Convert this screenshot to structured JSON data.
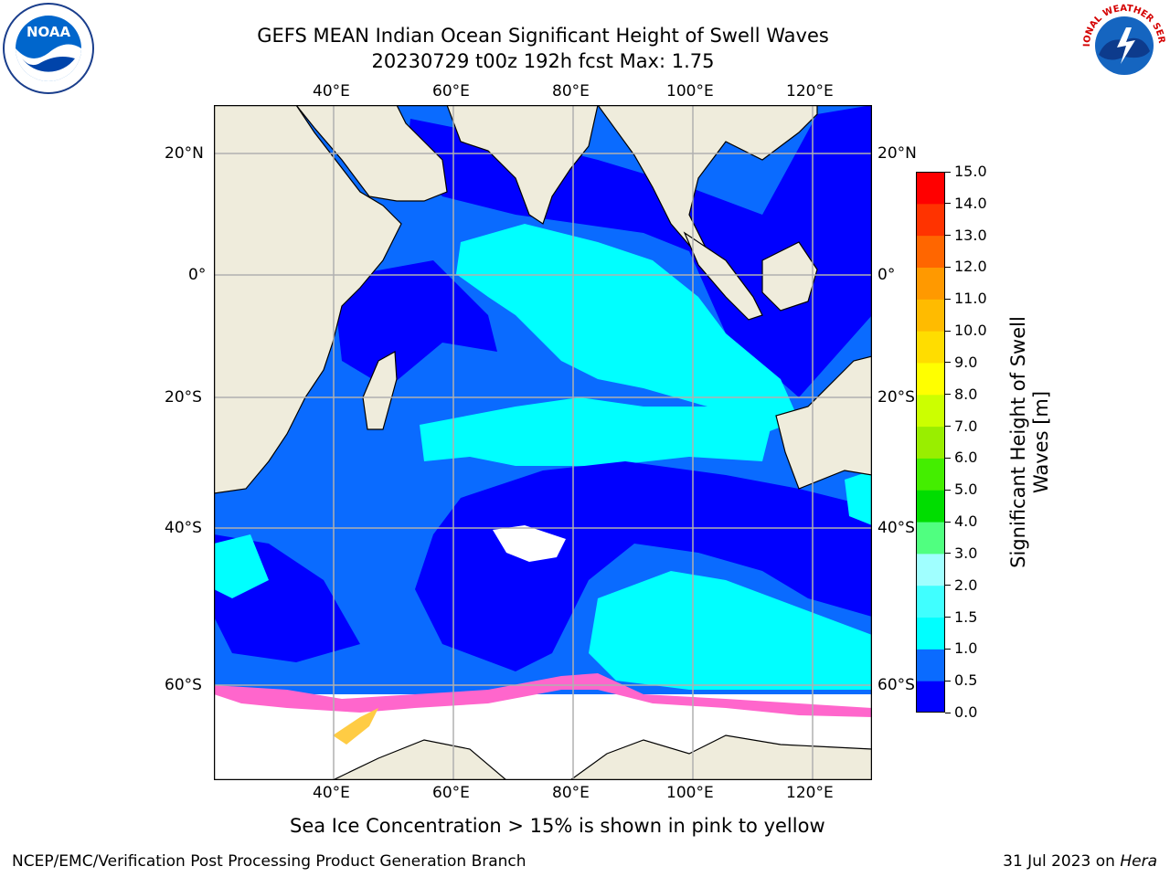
{
  "title": {
    "line1": "GEFS MEAN Indian Ocean Significant Height of Swell Waves",
    "line2": "20230729 t00z 192h fcst   Max: 1.75"
  },
  "map": {
    "lon_top": [
      "40°E",
      "60°E",
      "80°E",
      "100°E",
      "120°E"
    ],
    "lon_bottom": [
      "40°E",
      "60°E",
      "80°E",
      "100°E",
      "120°E"
    ],
    "lat_left": [
      "20°N",
      "0°",
      "20°S",
      "40°S",
      "60°S"
    ],
    "lat_right": [
      "20°N",
      "0°",
      "20°S",
      "40°S",
      "60°S"
    ],
    "colors": {
      "land": "#efecdc",
      "deep": "#0000ff",
      "mid": "#0a6bff",
      "cyan": "#00ffff",
      "grid": "#b0b0b0"
    }
  },
  "colorbar": {
    "label_line1": "Significant Height of Swell",
    "label_line2": "Waves [m]",
    "ticks": [
      "0.0",
      "0.5",
      "1.0",
      "1.5",
      "2.0",
      "3.0",
      "4.0",
      "5.0",
      "6.0",
      "7.0",
      "8.0",
      "9.0",
      "10.0",
      "11.0",
      "12.0",
      "13.0",
      "14.0",
      "15.0"
    ],
    "colors": [
      "#0000ff",
      "#0a6bff",
      "#00ffff",
      "#40ffff",
      "#a0ffff",
      "#50ff80",
      "#00dd00",
      "#44ee00",
      "#99ee00",
      "#ccff00",
      "#ffff00",
      "#ffdd00",
      "#ffbb00",
      "#ff9900",
      "#ff6600",
      "#ff3300",
      "#ff0000"
    ]
  },
  "caption": "Sea Ice Concentration > 15% is shown in pink to yellow",
  "footer": {
    "left": "NCEP/EMC/Verification Post Processing Product Generation Branch",
    "right_date": "31 Jul 2023 on ",
    "right_host": "Hera"
  },
  "logos": {
    "noaa_text": "NOAA",
    "nws_text": "NATIONAL WEATHER SERVICE"
  }
}
